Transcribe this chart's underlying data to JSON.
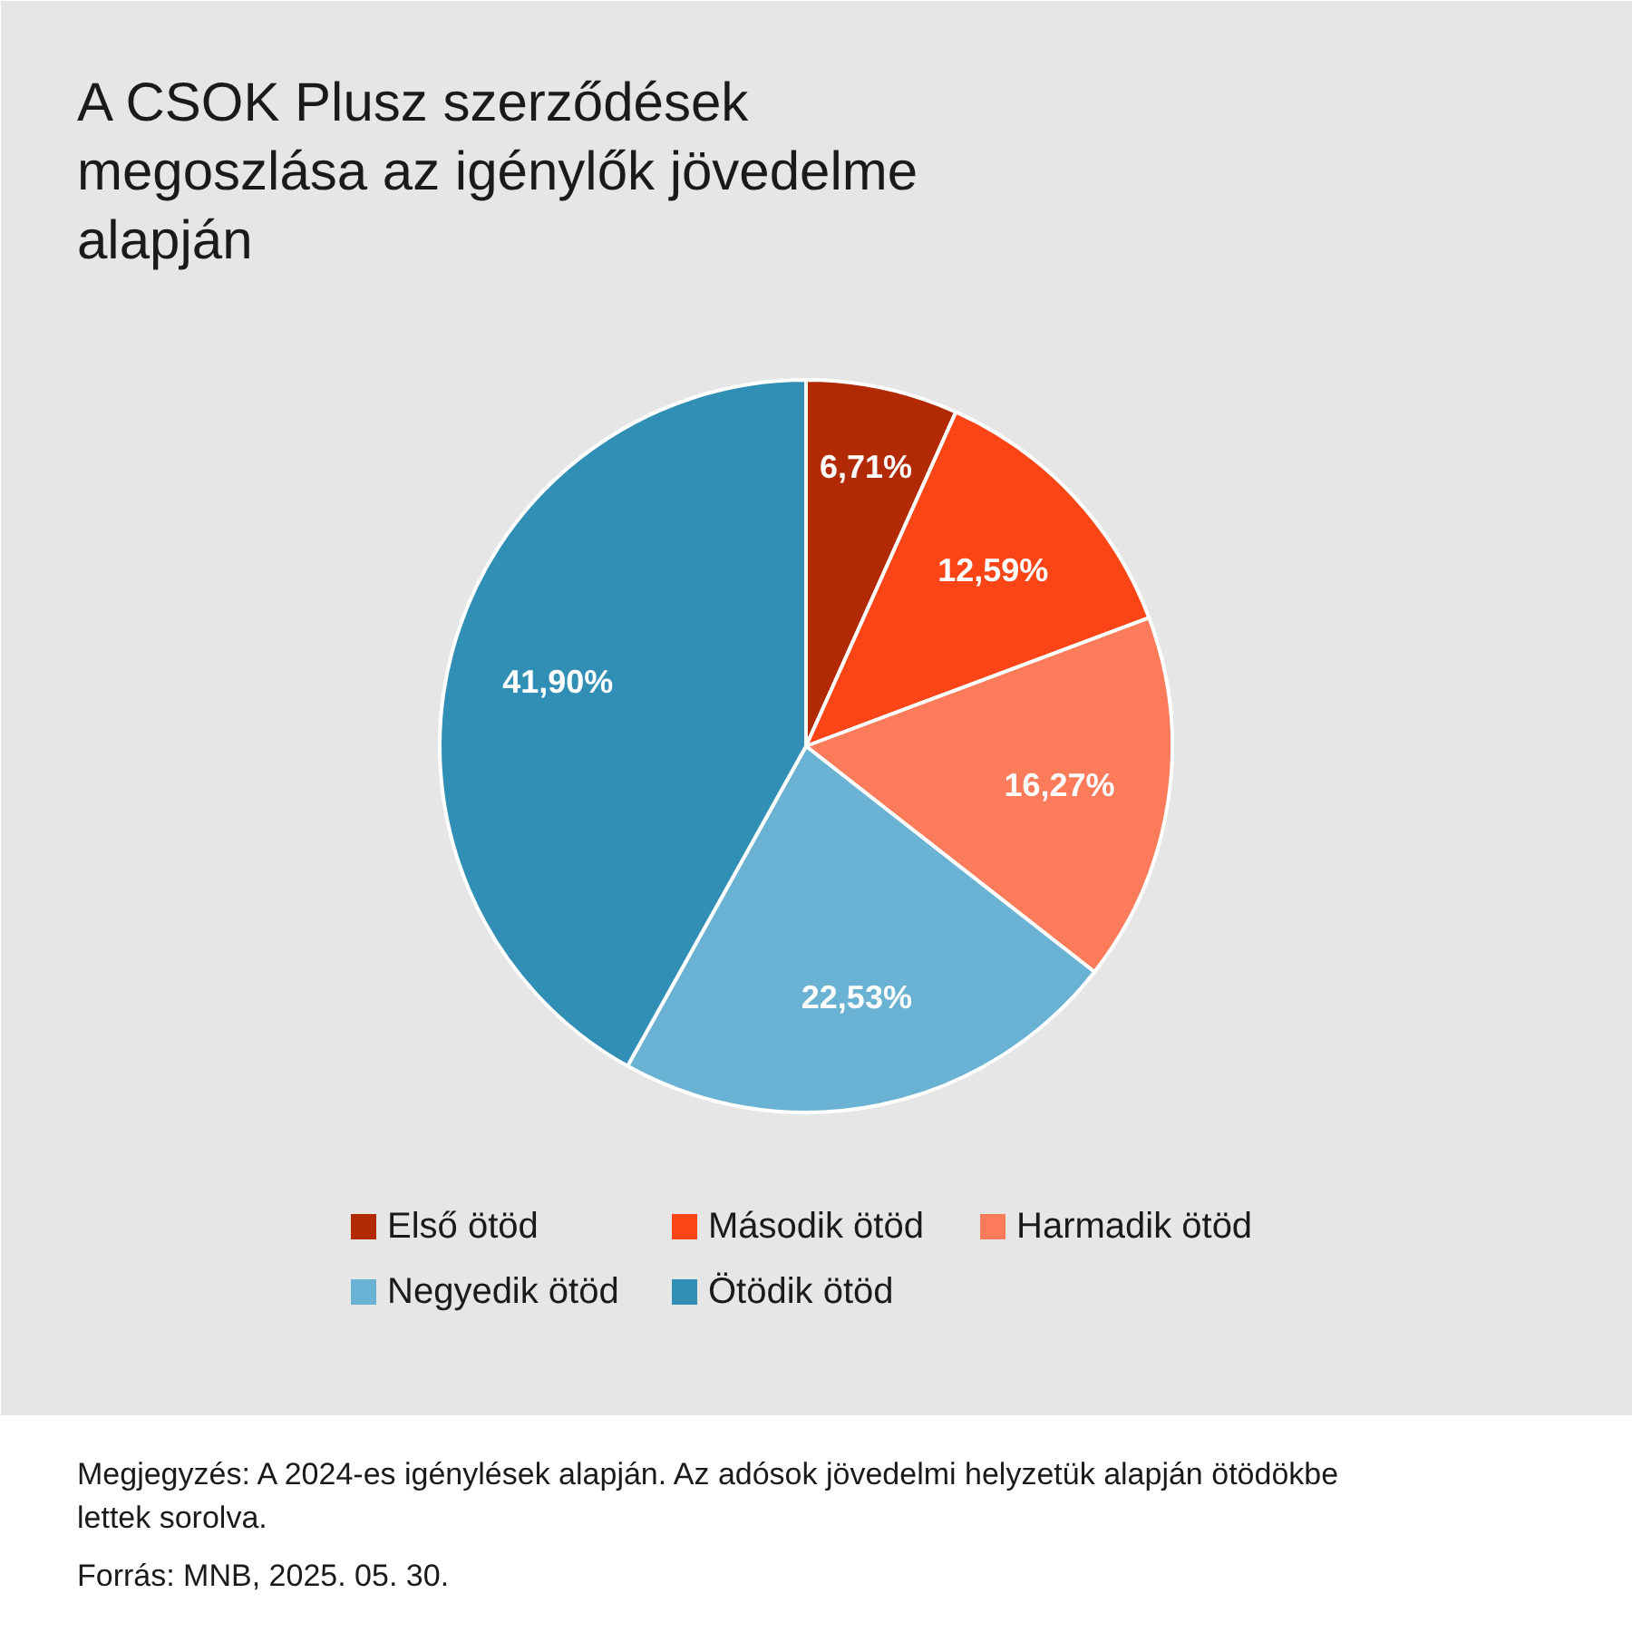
{
  "chart_data": {
    "type": "pie",
    "title": "A CSOK Plusz szerződések megoszlása az igénylők jövedelme alapján",
    "categories": [
      "Első ötöd",
      "Második ötöd",
      "Harmadik ötöd",
      "Negyedik ötöd",
      "Ötödik ötöd"
    ],
    "values": [
      6.71,
      12.59,
      16.27,
      22.53,
      41.9
    ],
    "value_labels": [
      "6,71%",
      "12,59%",
      "16,27%",
      "22,53%",
      "41,90%"
    ],
    "colors": [
      "#b22a03",
      "#fc4516",
      "#fc7b5a",
      "#6ab2d4",
      "#318fb6"
    ],
    "legend": "bottom",
    "annotations": [
      "Megjegyzés: A 2024-es igénylések alapján. Az adósok jövedelmi helyzetük alapján ötödökbe lettek sorolva.",
      "Forrás: MNB, 2025. 05. 30."
    ]
  }
}
